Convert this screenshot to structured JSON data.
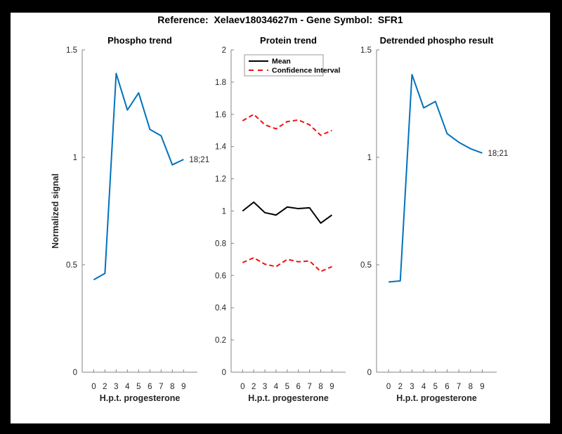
{
  "figure": {
    "title": "Reference:  Xelaev18034627m - Gene Symbol:  SFR1",
    "background": "#ffffff",
    "page_background": "#000000"
  },
  "colors": {
    "phospho_line": "#0072BD",
    "mean_line": "#000000",
    "ci_line": "#EE1111",
    "axis": "#858585",
    "text": "#262626",
    "legend_border": "#999999"
  },
  "chart_data": [
    {
      "type": "line",
      "title": "Phospho trend",
      "xlabel": "H.p.t. progesterone",
      "ylabel": "Normalized signal",
      "categories": [
        "0",
        "2",
        "3",
        "4",
        "5",
        "6",
        "7",
        "8",
        "9"
      ],
      "ylim": [
        0,
        1.5
      ],
      "yticks": [
        {
          "value": 0,
          "label": "0"
        },
        {
          "value": 0.5,
          "label": "0.5"
        },
        {
          "value": 1,
          "label": "1"
        },
        {
          "value": 1.5,
          "label": "1.5"
        }
      ],
      "grid": false,
      "series": [
        {
          "name": "phospho-signal",
          "color_ref": "phospho_line",
          "dashed": false,
          "values": [
            0.43,
            0.46,
            1.39,
            1.22,
            1.3,
            1.13,
            1.1,
            0.965,
            0.99
          ]
        }
      ],
      "annotation": {
        "text": "18;21",
        "anchor": "last-point"
      },
      "legend": null
    },
    {
      "type": "line",
      "title": "Protein trend",
      "xlabel": "H.p.t. progesterone",
      "ylabel": "",
      "categories": [
        "0",
        "2",
        "3",
        "4",
        "5",
        "6",
        "7",
        "8",
        "9"
      ],
      "ylim": [
        0,
        2
      ],
      "yticks": [
        {
          "value": 0,
          "label": "0"
        },
        {
          "value": 0.2,
          "label": "0.2"
        },
        {
          "value": 0.4,
          "label": "0.4"
        },
        {
          "value": 0.6,
          "label": "0.6"
        },
        {
          "value": 0.8,
          "label": "0.8"
        },
        {
          "value": 1,
          "label": "1"
        },
        {
          "value": 1.2,
          "label": "1.2"
        },
        {
          "value": 1.4,
          "label": "1.4"
        },
        {
          "value": 1.6,
          "label": "1.6"
        },
        {
          "value": 1.8,
          "label": "1.8"
        },
        {
          "value": 2,
          "label": "2"
        }
      ],
      "grid": false,
      "series": [
        {
          "name": "mean",
          "color_ref": "mean_line",
          "dashed": false,
          "values": [
            1.0,
            1.055,
            0.99,
            0.975,
            1.025,
            1.015,
            1.02,
            0.925,
            0.975
          ]
        },
        {
          "name": "confidence-interval-upper",
          "color_ref": "ci_line",
          "dashed": true,
          "values": [
            1.56,
            1.6,
            1.535,
            1.51,
            1.555,
            1.565,
            1.535,
            1.47,
            1.5
          ]
        },
        {
          "name": "confidence-interval-lower",
          "color_ref": "ci_line",
          "dashed": true,
          "values": [
            0.68,
            0.71,
            0.67,
            0.655,
            0.7,
            0.685,
            0.69,
            0.625,
            0.655
          ]
        }
      ],
      "annotation": null,
      "legend": {
        "position": "top-left",
        "entries": [
          {
            "label": "Mean",
            "color_ref": "mean_line",
            "dashed": false
          },
          {
            "label": "Confidence Interval",
            "color_ref": "ci_line",
            "dashed": true
          }
        ]
      }
    },
    {
      "type": "line",
      "title": "Detrended phospho result",
      "xlabel": "H.p.t. progesterone",
      "ylabel": "",
      "categories": [
        "0",
        "2",
        "3",
        "4",
        "5",
        "6",
        "7",
        "8",
        "9"
      ],
      "ylim": [
        0,
        1.5
      ],
      "yticks": [
        {
          "value": 0,
          "label": "0"
        },
        {
          "value": 0.5,
          "label": "0.5"
        },
        {
          "value": 1,
          "label": "1"
        },
        {
          "value": 1.5,
          "label": "1.5"
        }
      ],
      "grid": false,
      "series": [
        {
          "name": "detrended-phospho-signal",
          "color_ref": "phospho_line",
          "dashed": false,
          "values": [
            0.42,
            0.425,
            1.385,
            1.23,
            1.26,
            1.11,
            1.07,
            1.04,
            1.02
          ]
        }
      ],
      "annotation": {
        "text": "18;21",
        "anchor": "last-point"
      },
      "legend": null
    }
  ]
}
